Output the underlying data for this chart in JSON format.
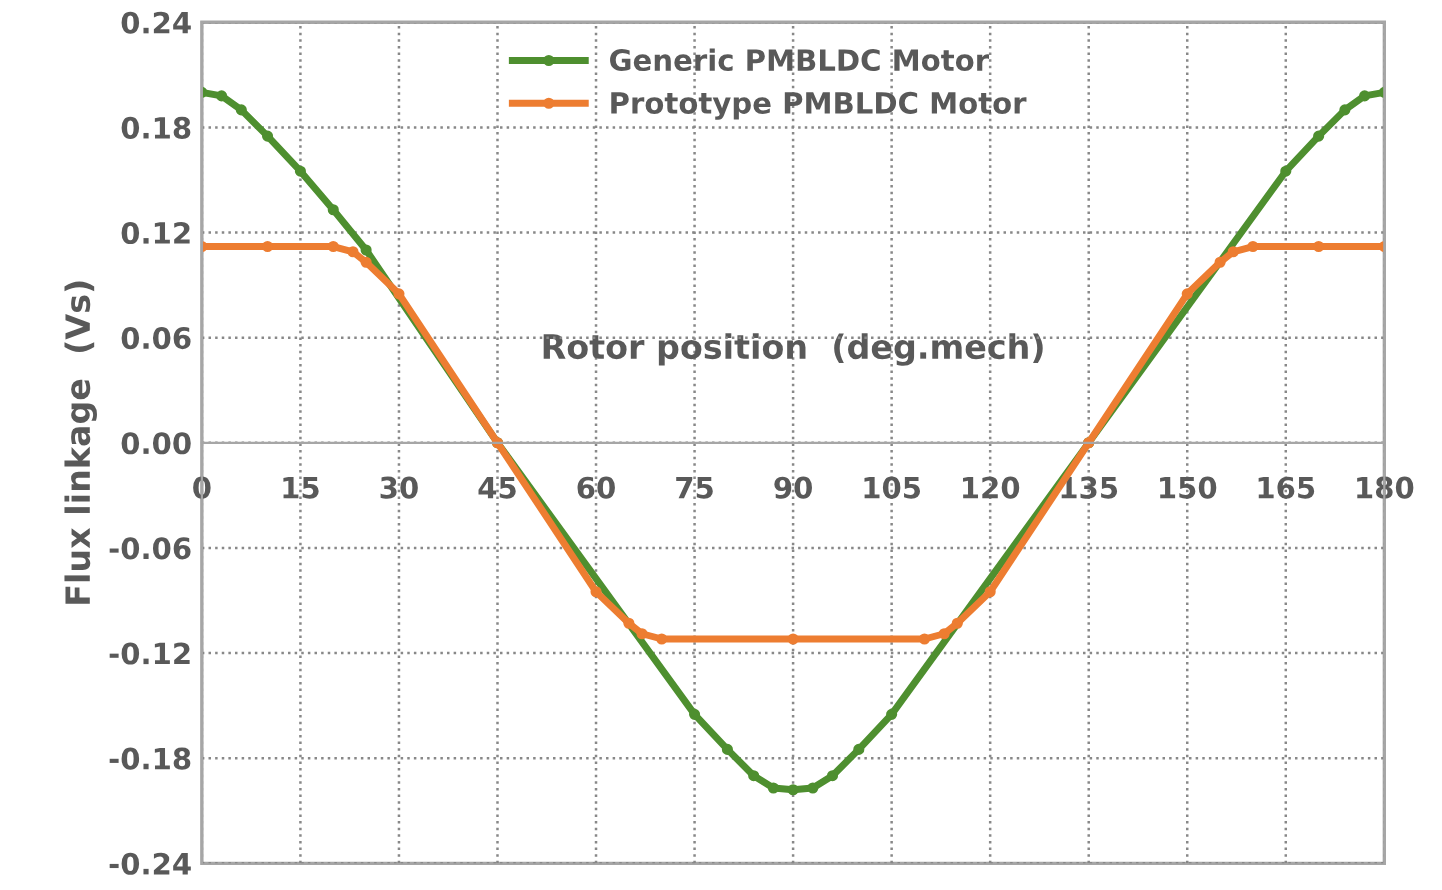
{
  "chart_data": {
    "type": "line",
    "xlabel": "Rotor position  (deg.mech)",
    "ylabel": "Flux linkage  (Vs)",
    "xlim": [
      0,
      180
    ],
    "xticks": [
      0,
      15,
      30,
      45,
      60,
      75,
      90,
      105,
      120,
      135,
      150,
      165,
      180
    ],
    "ylim": [
      -0.24,
      0.24
    ],
    "yticks": [
      {
        "value": 0.24,
        "label": "0.24"
      },
      {
        "value": 0.18,
        "label": "0.18"
      },
      {
        "value": 0.12,
        "label": "0.12"
      },
      {
        "value": 0.06,
        "label": "0.06"
      },
      {
        "value": 0,
        "label": "0.00"
      },
      {
        "value": -0.06,
        "label": "-0.06"
      },
      {
        "value": -0.12,
        "label": "-0.12"
      },
      {
        "value": -0.18,
        "label": "-0.18"
      },
      {
        "value": -0.24,
        "label": "-0.24"
      }
    ],
    "grid": true,
    "legend": "top",
    "marker": "circle",
    "line_style": "solid",
    "series": [
      {
        "name": "Generic PMBLDC Motor",
        "color": "#4e8f2f",
        "x": [
          0,
          3,
          6,
          10,
          15,
          20,
          25,
          45,
          75,
          80,
          84,
          87,
          90,
          93,
          96,
          100,
          105,
          135,
          165,
          170,
          174,
          177,
          180
        ],
        "values": [
          0.2,
          0.198,
          0.19,
          0.175,
          0.155,
          0.133,
          0.11,
          0,
          -0.155,
          -0.175,
          -0.19,
          -0.197,
          -0.198,
          -0.197,
          -0.19,
          -0.175,
          -0.155,
          0,
          0.155,
          0.175,
          0.19,
          0.198,
          0.2
        ]
      },
      {
        "name": "Prototype PMBLDC Motor",
        "color": "#ed7d31",
        "x": [
          0,
          10,
          20,
          23,
          25,
          30,
          45,
          60,
          65,
          67,
          70,
          90,
          110,
          113,
          115,
          120,
          135,
          150,
          155,
          157,
          160,
          170,
          180
        ],
        "values": [
          0.112,
          0.112,
          0.112,
          0.109,
          0.103,
          0.085,
          0,
          -0.085,
          -0.103,
          -0.109,
          -0.112,
          -0.112,
          -0.112,
          -0.109,
          -0.103,
          -0.085,
          0,
          0.085,
          0.103,
          0.109,
          0.112,
          0.112,
          0.112
        ]
      }
    ]
  }
}
